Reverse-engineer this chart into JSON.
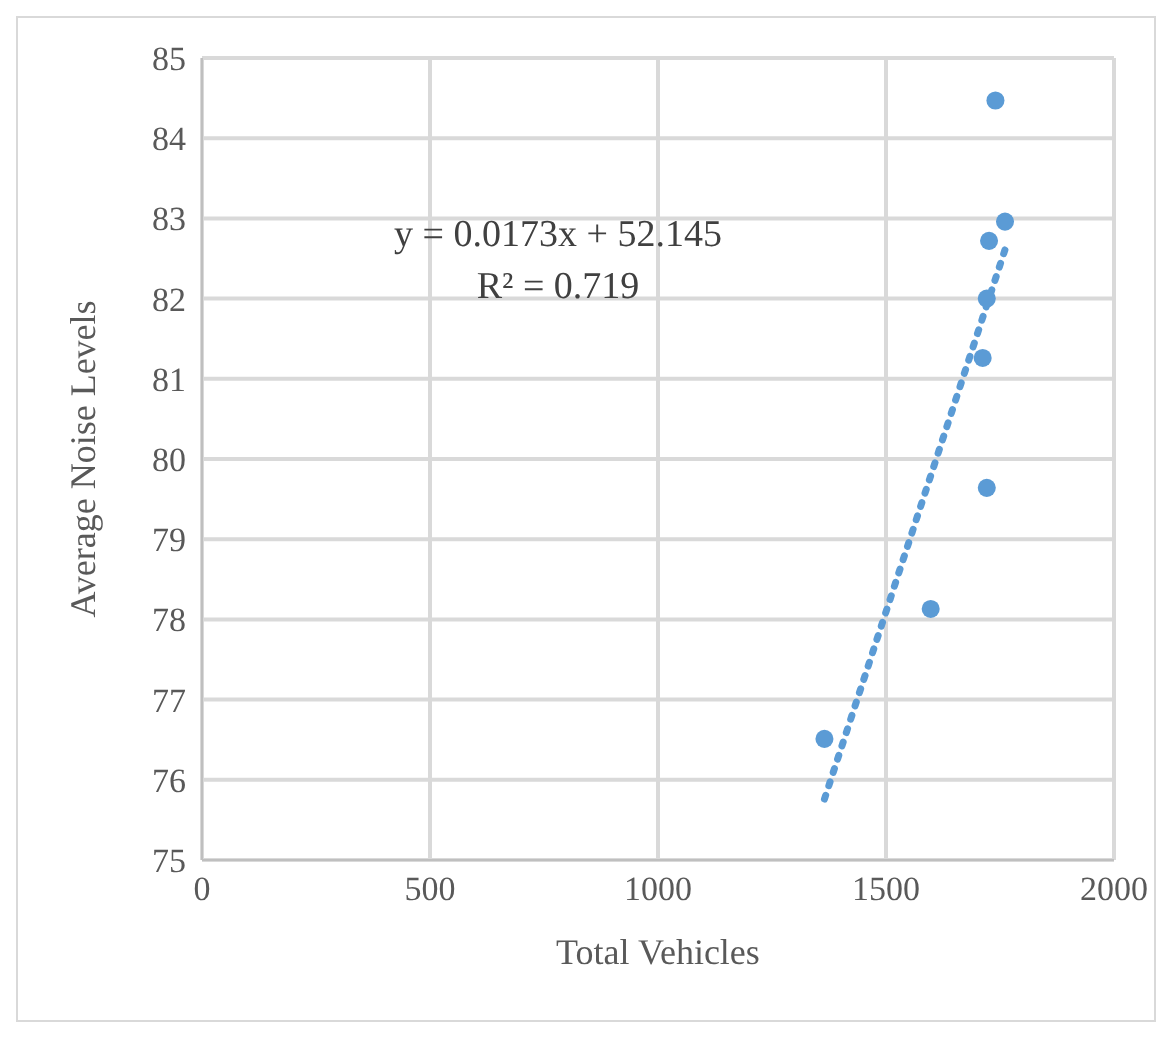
{
  "chart_data": {
    "type": "scatter",
    "xlabel": "Total Vehicles",
    "ylabel": "Average Noise Levels",
    "x": [
      1740,
      1761,
      1726,
      1721,
      1712,
      1721,
      1598,
      1365
    ],
    "series": [
      {
        "color": "#5b9bd5",
        "values": [
          84.47,
          82.96,
          82.72,
          82.0,
          81.26,
          79.64,
          78.13,
          76.51
        ],
        "marker": "circle"
      },
      {
        "type": "line",
        "color": "#5b9bd5",
        "x": [
          1365,
          1761
        ],
        "values": [
          75.76,
          82.61
        ],
        "line_style": "dotted",
        "marker": "none"
      }
    ],
    "xlim": [
      0,
      2000
    ],
    "xticks": [
      0,
      500,
      1000,
      1500,
      2000
    ],
    "ylim": [
      75,
      85
    ],
    "yticks": [
      75,
      76,
      77,
      78,
      79,
      80,
      81,
      82,
      83,
      84,
      85
    ],
    "grid": true,
    "annotations": [
      "y = 0.0173x + 52.145\nR² = 0.719"
    ]
  }
}
